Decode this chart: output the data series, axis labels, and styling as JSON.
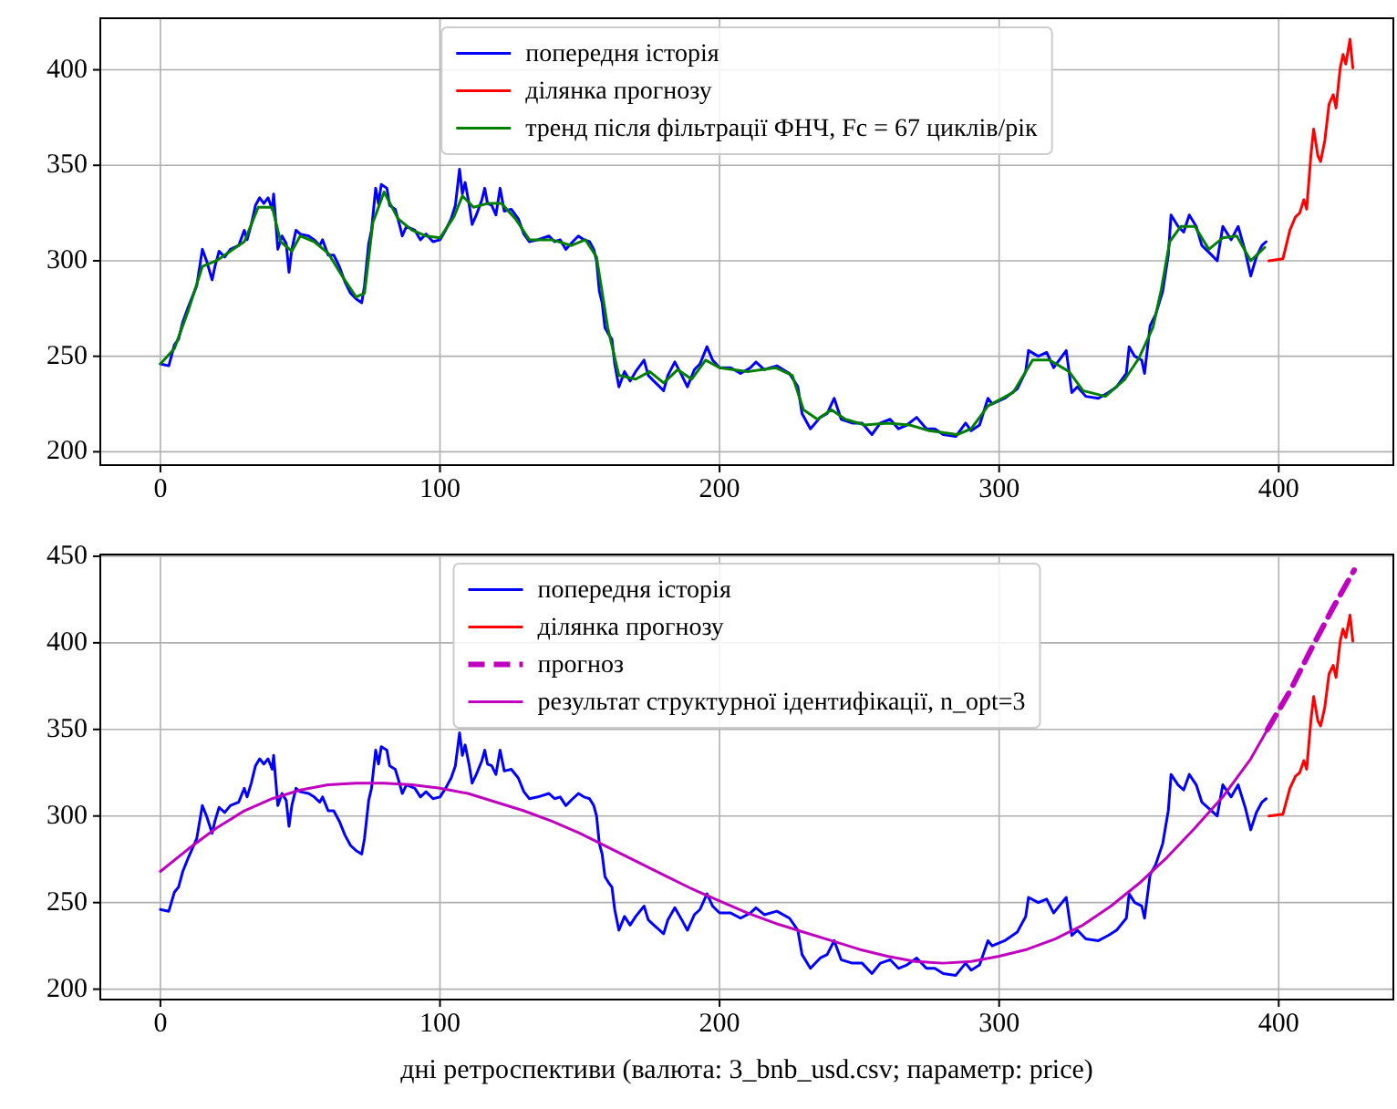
{
  "chart_data": [
    {
      "type": "line",
      "xlim": [
        -21.5,
        441
      ],
      "xticks": [
        0,
        100,
        200,
        300,
        400
      ],
      "ylim": [
        193,
        427
      ],
      "yticks": [
        200,
        250,
        300,
        350,
        400
      ],
      "grid": true,
      "legend": "top",
      "series": [
        {
          "name": "попередня історія",
          "color": "#0000ff",
          "x": [
            0,
            3,
            5,
            6.5,
            8,
            10,
            13,
            15,
            16.5,
            18.5,
            19.5,
            21,
            23,
            25,
            28,
            30,
            31,
            32.5,
            34,
            35.5,
            37,
            38.5,
            40,
            40.5,
            42,
            43.5,
            45,
            46,
            47,
            48.5,
            50,
            53,
            55,
            57,
            58,
            60,
            62,
            64,
            66,
            68,
            70,
            72,
            73,
            74.5,
            75.5,
            77,
            78,
            79,
            81,
            82,
            84,
            85.5,
            86.5,
            88,
            91,
            93,
            95,
            97.5,
            100,
            102,
            104,
            105.5,
            107,
            108,
            109,
            110.5,
            111.5,
            113,
            115,
            116,
            117,
            118.5,
            120,
            121.5,
            123,
            125.5,
            128,
            130,
            132,
            135,
            139,
            141,
            143,
            145,
            147.5,
            149.5,
            151.5,
            153.5,
            155,
            156,
            157,
            158,
            159,
            160.5,
            161.5,
            162.5,
            164,
            166,
            168,
            170,
            173,
            174.5,
            176.5,
            180,
            181.5,
            184,
            186.5,
            188.5,
            191,
            193,
            195.5,
            197.5,
            200,
            204,
            207.5,
            211,
            213,
            216,
            220.5,
            225,
            228,
            229.5,
            232.5,
            236,
            238.5,
            241,
            243.5,
            247.5,
            251,
            254.5,
            257.5,
            261,
            264,
            267,
            270.5,
            274,
            277,
            280,
            284.5,
            288,
            290,
            293,
            296,
            297.5,
            302,
            306.5,
            309.5,
            310.5,
            314,
            317,
            319.5,
            322.5,
            324,
            326,
            328,
            331,
            335.5,
            339,
            342,
            345.5,
            346.5,
            348.5,
            351,
            352,
            354,
            356,
            358.5,
            360.5,
            361.5,
            364,
            366,
            368,
            370.5,
            372.5,
            376,
            378,
            380,
            383,
            385.5,
            388,
            390,
            392,
            394,
            395.5
          ],
          "values": [
            246,
            245,
            256,
            259,
            268,
            276,
            287,
            306,
            300,
            290,
            297,
            305,
            302,
            306,
            308,
            316,
            311,
            319,
            329,
            333,
            330,
            333,
            327,
            335,
            306,
            313,
            309,
            294,
            306,
            316,
            314,
            313,
            311,
            308,
            311,
            303,
            303,
            297,
            289,
            283,
            280,
            278,
            287,
            309,
            316,
            338,
            330,
            340,
            338,
            329,
            327,
            319,
            313,
            318,
            316,
            311,
            314,
            310,
            311,
            316,
            322,
            329,
            348,
            335,
            341,
            329,
            319,
            324,
            332,
            338,
            330,
            329,
            324,
            338,
            326,
            327,
            322,
            314,
            310,
            311,
            313,
            310,
            311,
            306,
            310,
            313,
            311,
            310,
            306,
            300,
            284,
            278,
            265,
            261,
            259,
            246,
            234,
            242,
            237,
            242,
            248,
            240,
            237,
            232,
            240,
            247,
            240,
            234,
            243,
            246,
            255,
            248,
            244,
            244,
            241,
            244,
            247,
            243,
            245,
            241,
            234,
            220,
            212,
            218,
            220,
            228,
            217,
            215,
            215,
            209,
            215,
            217,
            212,
            214,
            218,
            212,
            212,
            209,
            208,
            215,
            211,
            214,
            228,
            225,
            228,
            233,
            242,
            253,
            250,
            252,
            244,
            250,
            253,
            231,
            234,
            229,
            228,
            231,
            234,
            241,
            255,
            250,
            248,
            241,
            266,
            272,
            284,
            303,
            324,
            318,
            315,
            324,
            318,
            308,
            303,
            300,
            318,
            311,
            318,
            305,
            292,
            302,
            308,
            310
          ]
        },
        {
          "name": "ділянка прогнозу",
          "color": "#ff0000",
          "x": [
            396.5,
            401.5,
            404,
            406,
            407.5,
            409,
            410,
            411.5,
            412.5,
            414,
            415,
            416.5,
            418,
            419.5,
            420.5,
            422,
            423,
            424,
            425.5,
            426.5
          ],
          "values": [
            300,
            301,
            316,
            323,
            325,
            332,
            327,
            355,
            369,
            355,
            352,
            363,
            382,
            387,
            380,
            401,
            408,
            403,
            416,
            401
          ]
        },
        {
          "name": "тренд після фільтрації ФНЧ, Fc = 67 циклів/рік",
          "color": "#008000",
          "x": [
            0,
            5,
            10,
            15,
            20,
            25,
            30,
            35,
            40,
            43,
            47,
            50,
            55,
            60,
            65,
            70,
            73,
            76,
            80,
            85,
            90,
            95,
            100,
            105,
            108,
            112,
            117,
            122,
            127,
            132,
            140,
            147,
            152,
            156,
            160,
            164,
            170,
            175,
            180,
            185,
            190,
            195,
            200,
            210,
            220,
            226,
            230,
            235,
            240,
            245,
            252,
            260,
            268,
            275,
            285,
            290,
            296,
            305,
            312,
            318,
            325,
            330,
            338,
            345,
            350,
            355,
            358,
            361,
            365,
            370,
            375,
            380,
            385,
            390,
            395
          ],
          "values": [
            246,
            254,
            274,
            297,
            300,
            305,
            310,
            328,
            328,
            310,
            305,
            313,
            310,
            304,
            292,
            281,
            283,
            320,
            336,
            322,
            316,
            313,
            312,
            323,
            334,
            328,
            330,
            330,
            322,
            311,
            311,
            308,
            311,
            302,
            265,
            240,
            238,
            242,
            236,
            243,
            238,
            248,
            244,
            242,
            244,
            240,
            222,
            217,
            222,
            217,
            214,
            215,
            214,
            211,
            209,
            212,
            224,
            231,
            248,
            248,
            242,
            232,
            229,
            238,
            249,
            265,
            285,
            310,
            318,
            318,
            306,
            312,
            313,
            300,
            307
          ]
        }
      ]
    },
    {
      "type": "line",
      "xlabel": "дні ретроспективи (валюта: 3_bnb_usd.csv; параметр: price)",
      "xlim": [
        -21.5,
        441
      ],
      "xticks": [
        0,
        100,
        200,
        300,
        400
      ],
      "ylim": [
        194,
        451
      ],
      "yticks": [
        200,
        250,
        300,
        350,
        400,
        450
      ],
      "grid": true,
      "legend": "top",
      "series": [
        {
          "name": "попередня історія",
          "color": "#0000ff",
          "x": [
            0,
            3,
            5,
            6.5,
            8,
            10,
            13,
            15,
            16.5,
            18.5,
            19.5,
            21,
            23,
            25,
            28,
            30,
            31,
            32.5,
            34,
            35.5,
            37,
            38.5,
            40,
            40.5,
            42,
            43.5,
            45,
            46,
            47,
            48.5,
            50,
            53,
            55,
            57,
            58,
            60,
            62,
            64,
            66,
            68,
            70,
            72,
            73,
            74.5,
            75.5,
            77,
            78,
            79,
            81,
            82,
            84,
            85.5,
            86.5,
            88,
            91,
            93,
            95,
            97.5,
            100,
            102,
            104,
            105.5,
            107,
            108,
            109,
            110.5,
            111.5,
            113,
            115,
            116,
            117,
            118.5,
            120,
            121.5,
            123,
            125.5,
            128,
            130,
            132,
            135,
            139,
            141,
            143,
            145,
            147.5,
            149.5,
            151.5,
            153.5,
            155,
            156,
            157,
            158,
            159,
            160.5,
            161.5,
            162.5,
            164,
            166,
            168,
            170,
            173,
            174.5,
            176.5,
            180,
            181.5,
            184,
            186.5,
            188.5,
            191,
            193,
            195.5,
            197.5,
            200,
            204,
            207.5,
            211,
            213,
            216,
            220.5,
            225,
            228,
            229.5,
            232.5,
            236,
            238.5,
            241,
            243.5,
            247.5,
            251,
            254.5,
            257.5,
            261,
            264,
            267,
            270.5,
            274,
            277,
            280,
            284.5,
            288,
            290,
            293,
            296,
            297.5,
            302,
            306.5,
            309.5,
            310.5,
            314,
            317,
            319.5,
            322.5,
            324,
            326,
            328,
            331,
            335.5,
            339,
            342,
            345.5,
            346.5,
            348.5,
            351,
            352,
            354,
            356,
            358.5,
            360.5,
            361.5,
            364,
            366,
            368,
            370.5,
            372.5,
            376,
            378,
            380,
            383,
            385.5,
            388,
            390,
            392,
            394,
            395.5
          ],
          "values": [
            246,
            245,
            256,
            259,
            268,
            276,
            287,
            306,
            300,
            290,
            297,
            305,
            302,
            306,
            308,
            316,
            311,
            319,
            329,
            333,
            330,
            333,
            327,
            335,
            306,
            313,
            309,
            294,
            306,
            316,
            314,
            313,
            311,
            308,
            311,
            303,
            303,
            297,
            289,
            283,
            280,
            278,
            287,
            309,
            316,
            338,
            330,
            340,
            338,
            329,
            327,
            319,
            313,
            318,
            316,
            311,
            314,
            310,
            311,
            316,
            322,
            329,
            348,
            335,
            341,
            329,
            319,
            324,
            332,
            338,
            330,
            329,
            324,
            338,
            326,
            327,
            322,
            314,
            310,
            311,
            313,
            310,
            311,
            306,
            310,
            313,
            311,
            310,
            306,
            300,
            284,
            278,
            265,
            261,
            259,
            246,
            234,
            242,
            237,
            242,
            248,
            240,
            237,
            232,
            240,
            247,
            240,
            234,
            243,
            246,
            255,
            248,
            244,
            244,
            241,
            244,
            247,
            243,
            245,
            241,
            234,
            220,
            212,
            218,
            220,
            228,
            217,
            215,
            215,
            209,
            215,
            217,
            212,
            214,
            218,
            212,
            212,
            209,
            208,
            215,
            211,
            214,
            228,
            225,
            228,
            233,
            242,
            253,
            250,
            252,
            244,
            250,
            253,
            231,
            234,
            229,
            228,
            231,
            234,
            241,
            255,
            250,
            248,
            241,
            266,
            272,
            284,
            303,
            324,
            318,
            315,
            324,
            318,
            308,
            303,
            300,
            318,
            311,
            318,
            305,
            292,
            302,
            308,
            310
          ]
        },
        {
          "name": "ділянка прогнозу",
          "color": "#ff0000",
          "x": [
            396.5,
            401.5,
            404,
            406,
            407.5,
            409,
            410,
            411.5,
            412.5,
            414,
            415,
            416.5,
            418,
            419.5,
            420.5,
            422,
            423,
            424,
            425.5,
            426.5
          ],
          "values": [
            300,
            301,
            316,
            323,
            325,
            332,
            327,
            355,
            369,
            355,
            352,
            363,
            382,
            387,
            380,
            401,
            408,
            403,
            416,
            401
          ]
        },
        {
          "name": "прогноз",
          "color": "#bf00bf",
          "line_style": "dashed",
          "x": [
            396,
            404,
            411.5,
            419,
            427
          ],
          "values": [
            350,
            372,
            396,
            419,
            442
          ]
        },
        {
          "name": "результат структурної ідентифікації, n_opt=3",
          "color": "#bf00bf",
          "x": [
            0,
            10,
            20,
            30,
            40,
            50,
            60,
            70,
            80,
            90,
            100,
            110,
            120,
            130,
            140,
            150,
            160,
            170,
            180,
            190,
            200,
            210,
            220,
            230,
            240,
            250,
            260,
            270,
            280,
            290,
            300,
            310,
            320,
            330,
            340,
            350,
            360,
            370,
            380,
            390,
            396
          ],
          "values": [
            268,
            281,
            293,
            303,
            310,
            315,
            318,
            319,
            319,
            318,
            316,
            313,
            308,
            303,
            297,
            290,
            282,
            274,
            266,
            258,
            251,
            244,
            238,
            233,
            228,
            223,
            219,
            216,
            215,
            216,
            219,
            223,
            229,
            237,
            248,
            261,
            276,
            293,
            311,
            333,
            350
          ]
        }
      ]
    }
  ]
}
